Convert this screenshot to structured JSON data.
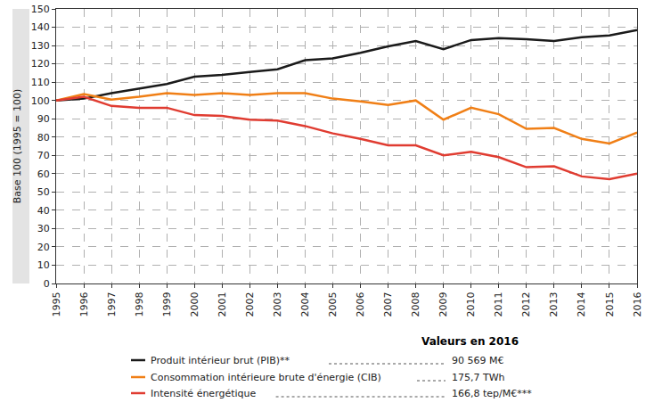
{
  "chart_data": {
    "type": "line",
    "y_label": "Base 100 (1995 = 100)",
    "x": [
      1995,
      1996,
      1997,
      1998,
      1999,
      2000,
      2001,
      2002,
      2003,
      2004,
      2005,
      2006,
      2007,
      2008,
      2009,
      2010,
      2011,
      2012,
      2013,
      2014,
      2015,
      2016
    ],
    "xlim": [
      1995,
      2016
    ],
    "xticks": [
      1995,
      1996,
      1997,
      1998,
      1999,
      2000,
      2001,
      2002,
      2003,
      2004,
      2005,
      2006,
      2007,
      2008,
      2009,
      2010,
      2011,
      2012,
      2013,
      2014,
      2015,
      2016
    ],
    "ylim": [
      0,
      150
    ],
    "yticks": [
      0,
      10,
      20,
      30,
      40,
      50,
      60,
      70,
      80,
      90,
      100,
      110,
      120,
      130,
      140,
      150
    ],
    "grid": true,
    "annotations": [
      "Valeurs en 2016",
      "90 569 M€",
      "175,7 TWh",
      "166,8 tep/M€***"
    ],
    "series": [
      {
        "name": "Produit intérieur brut (PIB)**",
        "color": "#1a1a1a",
        "values": [
          100,
          101,
          104,
          106.5,
          109,
          113,
          114,
          115.5,
          117,
          122,
          123,
          126,
          129.5,
          132.5,
          128,
          133,
          134,
          133.5,
          132.5,
          134.5,
          135.5,
          138.5
        ]
      },
      {
        "name": "Consommation intérieure brute d'énergie (CIB)",
        "color": "#f07f16",
        "values": [
          100,
          103.5,
          100.5,
          102,
          104,
          103,
          104,
          103,
          104,
          104,
          101,
          99.5,
          97.5,
          100,
          89.5,
          96,
          92.5,
          84.5,
          85,
          79,
          76.5,
          82.5
        ]
      },
      {
        "name": "Intensité énergétique",
        "color": "#e03c31",
        "values": [
          100,
          102,
          97,
          96,
          96,
          92,
          91.5,
          89.5,
          89,
          86,
          82,
          79,
          75.5,
          75.5,
          70,
          72,
          69,
          63.5,
          64,
          58.5,
          57,
          60
        ]
      }
    ]
  }
}
